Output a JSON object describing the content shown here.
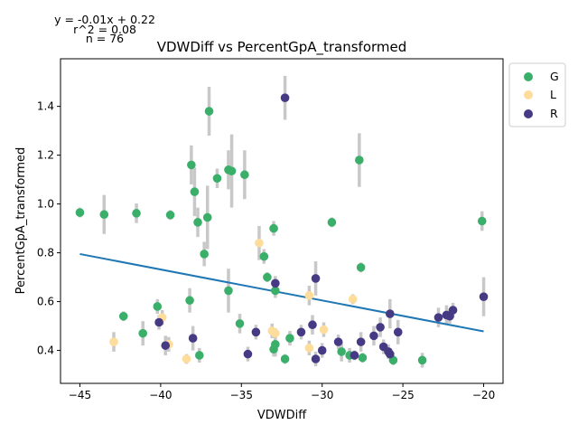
{
  "chart_data": {
    "type": "scatter",
    "title": "VDWDiff vs PercentGpA_transformed",
    "xlabel": "VDWDiff",
    "ylabel": "PercentGpA_transformed",
    "xlim": [
      -46.2,
      -18.8
    ],
    "ylim": [
      0.265,
      1.595
    ],
    "xticks": [
      -45,
      -40,
      -35,
      -30,
      -25,
      -20
    ],
    "xtick_labels": [
      "−45",
      "−40",
      "−35",
      "−30",
      "−25",
      "−20"
    ],
    "yticks": [
      0.4,
      0.6,
      0.8,
      1.0,
      1.2,
      1.4
    ],
    "ytick_labels": [
      "0.4",
      "0.6",
      "0.8",
      "1.0",
      "1.2",
      "1.4"
    ],
    "grid": false,
    "legend_position": "outside-right",
    "annotations": [
      "y = -0.01x + 0.22",
      "r^2 = 0.08",
      "n = 76"
    ],
    "regression": {
      "x": [
        -45,
        -20
      ],
      "y": [
        0.795,
        0.478
      ],
      "color": "#1f77b4"
    },
    "series": [
      {
        "name": "G",
        "color": "#3aaf6a",
        "points": [
          {
            "x": -45.0,
            "y": 0.965,
            "err": 0.02
          },
          {
            "x": -43.5,
            "y": 0.957,
            "err": 0.08
          },
          {
            "x": -41.5,
            "y": 0.962,
            "err": 0.04
          },
          {
            "x": -42.3,
            "y": 0.54,
            "err": 0.02
          },
          {
            "x": -41.1,
            "y": 0.47,
            "err": 0.05
          },
          {
            "x": -40.2,
            "y": 0.58,
            "err": 0.03
          },
          {
            "x": -39.4,
            "y": 0.955,
            "err": 0.02
          },
          {
            "x": -38.1,
            "y": 1.16,
            "err": 0.08
          },
          {
            "x": -37.9,
            "y": 1.05,
            "err": 0.1
          },
          {
            "x": -37.7,
            "y": 0.925,
            "err": 0.06
          },
          {
            "x": -37.6,
            "y": 0.38,
            "err": 0.03
          },
          {
            "x": -37.3,
            "y": 0.795,
            "err": 0.05
          },
          {
            "x": -37.1,
            "y": 0.945,
            "err": 0.13
          },
          {
            "x": -37.0,
            "y": 1.38,
            "err": 0.1
          },
          {
            "x": -38.2,
            "y": 0.605,
            "err": 0.05
          },
          {
            "x": -36.5,
            "y": 1.105,
            "err": 0.04
          },
          {
            "x": -35.8,
            "y": 1.14,
            "err": 0.08
          },
          {
            "x": -35.6,
            "y": 1.135,
            "err": 0.15
          },
          {
            "x": -35.8,
            "y": 0.645,
            "err": 0.09
          },
          {
            "x": -35.1,
            "y": 0.51,
            "err": 0.04
          },
          {
            "x": -34.8,
            "y": 1.12,
            "err": 0.1
          },
          {
            "x": -33.6,
            "y": 0.785,
            "err": 0.03
          },
          {
            "x": -33.4,
            "y": 0.7,
            "err": 0.02
          },
          {
            "x": -33.0,
            "y": 0.9,
            "err": 0.03
          },
          {
            "x": -32.9,
            "y": 0.645,
            "err": 0.03
          },
          {
            "x": -32.9,
            "y": 0.425,
            "err": 0.05
          },
          {
            "x": -33.0,
            "y": 0.405,
            "err": 0.03
          },
          {
            "x": -32.3,
            "y": 0.365,
            "err": 0.02
          },
          {
            "x": -32.0,
            "y": 0.45,
            "err": 0.03
          },
          {
            "x": -29.4,
            "y": 0.925,
            "err": 0.02
          },
          {
            "x": -28.8,
            "y": 0.395,
            "err": 0.04
          },
          {
            "x": -28.3,
            "y": 0.38,
            "err": 0.03
          },
          {
            "x": -27.7,
            "y": 1.18,
            "err": 0.11
          },
          {
            "x": -27.6,
            "y": 0.74,
            "err": 0.02
          },
          {
            "x": -27.5,
            "y": 0.37,
            "err": 0.02
          },
          {
            "x": -25.6,
            "y": 0.36,
            "err": 0.02
          },
          {
            "x": -23.8,
            "y": 0.36,
            "err": 0.03
          },
          {
            "x": -20.1,
            "y": 0.93,
            "err": 0.04
          }
        ]
      },
      {
        "name": "L",
        "color": "#fedc9c",
        "points": [
          {
            "x": -42.9,
            "y": 0.435,
            "err": 0.04
          },
          {
            "x": -39.9,
            "y": 0.535,
            "err": 0.03
          },
          {
            "x": -39.5,
            "y": 0.425,
            "err": 0.03
          },
          {
            "x": -38.4,
            "y": 0.365,
            "err": 0.02
          },
          {
            "x": -33.9,
            "y": 0.84,
            "err": 0.07
          },
          {
            "x": -33.1,
            "y": 0.48,
            "err": 0.03
          },
          {
            "x": -32.9,
            "y": 0.47,
            "err": 0.02
          },
          {
            "x": -30.8,
            "y": 0.625,
            "err": 0.04
          },
          {
            "x": -30.8,
            "y": 0.41,
            "err": 0.03
          },
          {
            "x": -29.9,
            "y": 0.485,
            "err": 0.03
          },
          {
            "x": -28.1,
            "y": 0.61,
            "err": 0.02
          }
        ]
      },
      {
        "name": "R",
        "color": "#473a84",
        "points": [
          {
            "x": -40.1,
            "y": 0.515,
            "err": 0.03
          },
          {
            "x": -39.7,
            "y": 0.42,
            "err": 0.04
          },
          {
            "x": -38.0,
            "y": 0.45,
            "err": 0.05
          },
          {
            "x": -34.6,
            "y": 0.385,
            "err": 0.03
          },
          {
            "x": -34.1,
            "y": 0.475,
            "err": 0.03
          },
          {
            "x": -32.9,
            "y": 0.675,
            "err": 0.03
          },
          {
            "x": -32.3,
            "y": 1.435,
            "err": 0.09
          },
          {
            "x": -31.3,
            "y": 0.475,
            "err": 0.03
          },
          {
            "x": -30.6,
            "y": 0.505,
            "err": 0.04
          },
          {
            "x": -30.4,
            "y": 0.695,
            "err": 0.07
          },
          {
            "x": -30.4,
            "y": 0.365,
            "err": 0.03
          },
          {
            "x": -30.0,
            "y": 0.4,
            "err": 0.03
          },
          {
            "x": -29.0,
            "y": 0.435,
            "err": 0.03
          },
          {
            "x": -28.0,
            "y": 0.38,
            "err": 0.02
          },
          {
            "x": -27.6,
            "y": 0.435,
            "err": 0.04
          },
          {
            "x": -26.8,
            "y": 0.46,
            "err": 0.04
          },
          {
            "x": -26.4,
            "y": 0.495,
            "err": 0.04
          },
          {
            "x": -26.2,
            "y": 0.415,
            "err": 0.03
          },
          {
            "x": -25.9,
            "y": 0.395,
            "err": 0.03
          },
          {
            "x": -25.8,
            "y": 0.385,
            "err": 0.02
          },
          {
            "x": -25.8,
            "y": 0.55,
            "err": 0.06
          },
          {
            "x": -25.3,
            "y": 0.475,
            "err": 0.05
          },
          {
            "x": -22.8,
            "y": 0.535,
            "err": 0.04
          },
          {
            "x": -22.3,
            "y": 0.545,
            "err": 0.04
          },
          {
            "x": -22.1,
            "y": 0.54,
            "err": 0.03
          },
          {
            "x": -21.9,
            "y": 0.565,
            "err": 0.03
          },
          {
            "x": -20.0,
            "y": 0.62,
            "err": 0.08
          }
        ]
      }
    ]
  }
}
